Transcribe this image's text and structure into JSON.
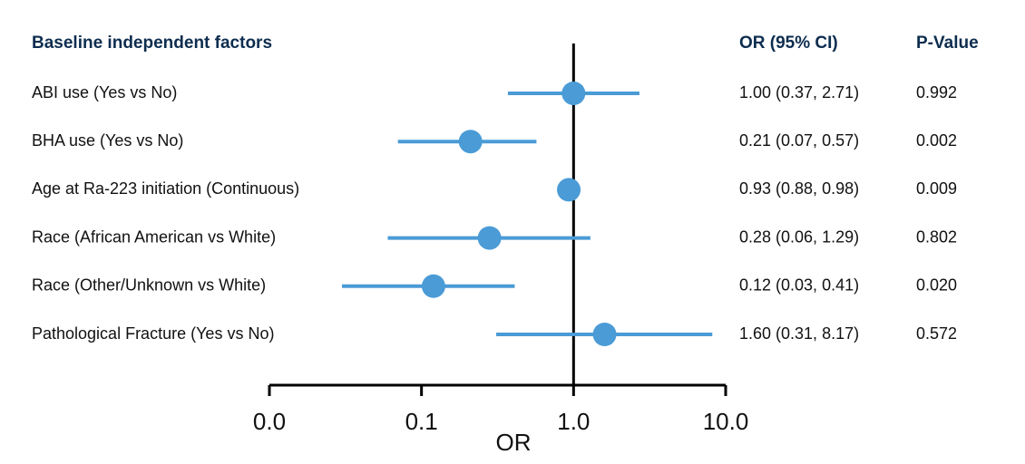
{
  "chart_data": {
    "type": "forest",
    "title": "Baseline independent factors",
    "ci_header": "OR (95% CI)",
    "p_header": "P-Value",
    "x_label": "OR",
    "categories": [
      "ABI use (Yes vs No)",
      "BHA use (Yes vs No)",
      "Age at Ra-223 initiation (Continuous)",
      "Race (African American vs White)",
      "Race (Other/Unknown vs White)",
      "Pathological Fracture (Yes vs No)"
    ],
    "values": [
      1.0,
      0.21,
      0.93,
      0.28,
      0.12,
      1.6
    ],
    "lower": [
      0.37,
      0.07,
      0.88,
      0.06,
      0.03,
      0.31
    ],
    "upper": [
      2.71,
      0.57,
      0.98,
      1.29,
      0.41,
      8.17
    ],
    "value_labels": [
      "1.00 (0.37, 2.71)",
      "0.21 (0.07, 0.57)",
      "0.93 (0.88, 0.98)",
      "0.28 (0.06, 1.29)",
      "0.12 (0.03, 0.41)",
      "1.60 (0.31, 8.17)"
    ],
    "p_values": [
      "0.992",
      "0.002",
      "0.009",
      "0.802",
      "0.020",
      "0.572"
    ],
    "color": "#4a9bd6",
    "log_x": true,
    "reference_line": 1,
    "xlim": [
      0.01,
      10
    ],
    "xticks": [
      {
        "value": 0.01,
        "label": "0.0"
      },
      0.1,
      {
        "value": 1,
        "label": "1.0"
      },
      {
        "value": 10,
        "label": "10.0"
      }
    ]
  }
}
